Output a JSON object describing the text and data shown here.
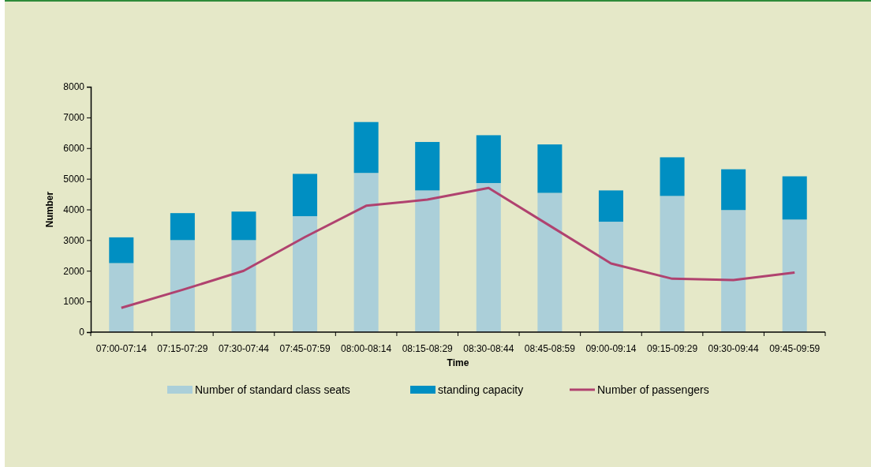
{
  "chart_data": {
    "type": "bar",
    "stacked": true,
    "xlabel": "Time",
    "ylabel": "Number",
    "categories": [
      "07:00-07:14",
      "07:15-07:29",
      "07:30-07:44",
      "07:45-07:59",
      "08:00-08:14",
      "08:15-08:29",
      "08:30-08:44",
      "08:45-08:59",
      "09:00-09:14",
      "09:15-09:29",
      "09:30-09:44",
      "09:45-09:59"
    ],
    "series": [
      {
        "name": "Number of standard class seats",
        "color": "#abcfd9",
        "values": [
          2250,
          3000,
          3000,
          3780,
          5190,
          4620,
          4860,
          4540,
          3600,
          4440,
          3980,
          3670
        ]
      },
      {
        "name": "standing capacity",
        "color": "#008fc2",
        "values": [
          840,
          880,
          930,
          1380,
          1660,
          1580,
          1560,
          1580,
          1020,
          1260,
          1330,
          1410
        ]
      },
      {
        "name": "Number of passengers",
        "type": "line",
        "color": "#b0426f",
        "values": [
          790,
          1380,
          2000,
          3100,
          4120,
          4320,
          4700,
          3470,
          2240,
          1740,
          1700,
          1940
        ]
      }
    ],
    "ylim": [
      0,
      8000
    ],
    "yticks": [
      0,
      1000,
      2000,
      3000,
      4000,
      5000,
      6000,
      7000,
      8000
    ],
    "grid": false,
    "legend": "bottom",
    "marker": "none"
  }
}
